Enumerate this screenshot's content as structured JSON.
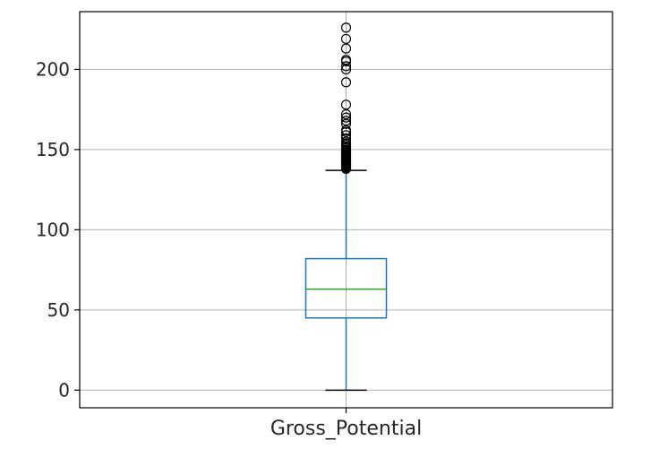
{
  "chart_data": {
    "type": "box",
    "title": "",
    "xlabel": "",
    "ylabel": "",
    "categories": [
      "Gross_Potential"
    ],
    "ylim": [
      -11,
      236
    ],
    "yticks": [
      0,
      50,
      100,
      150,
      200
    ],
    "grid": true,
    "box": {
      "whisker_low": 0,
      "q1": 45,
      "median": 63,
      "q3": 82,
      "whisker_high": 137,
      "outliers": [
        138,
        138.5,
        139,
        139.5,
        140,
        140.5,
        141,
        141.5,
        142,
        142.5,
        143,
        143.5,
        144,
        144.5,
        145,
        145.5,
        146,
        146.5,
        147,
        147.5,
        148,
        148.5,
        149,
        149.5,
        150,
        151,
        152,
        153,
        154,
        155,
        157,
        159,
        161,
        162,
        166,
        168,
        170,
        172,
        178,
        192,
        200,
        202,
        205,
        206,
        213,
        219,
        226
      ]
    },
    "colors": {
      "box": "#1f77b4",
      "median": "#2ca02c",
      "whisker": "#1f77b4",
      "cap": "#000000",
      "outlier": "#000000",
      "grid": "#b0b0b0",
      "axes": "#000000"
    }
  }
}
